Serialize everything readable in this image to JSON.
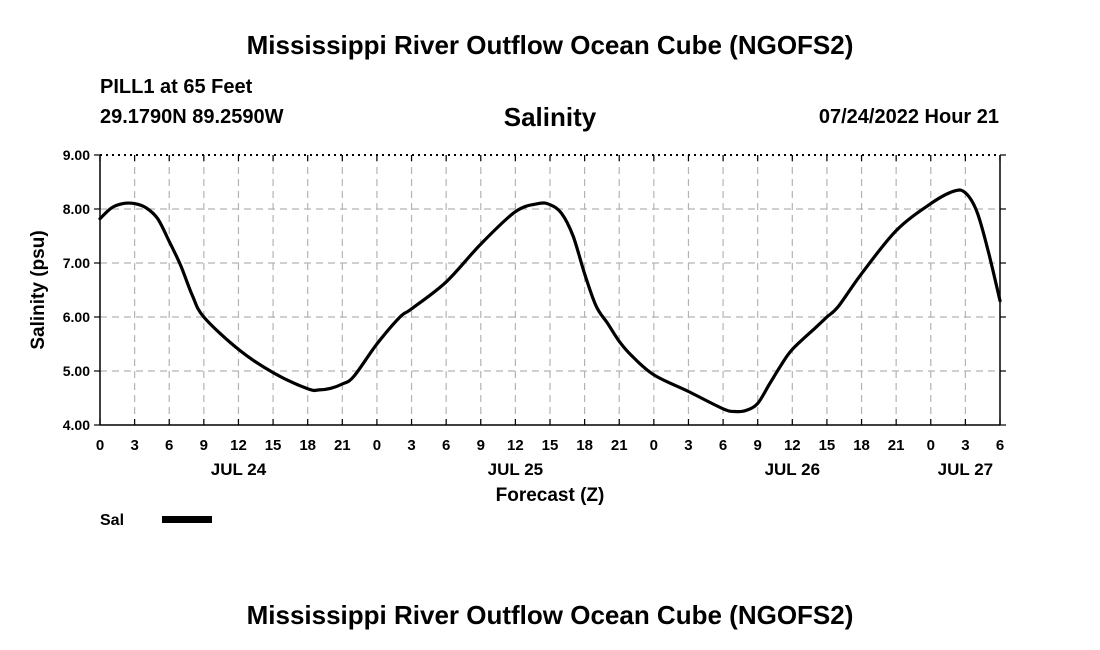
{
  "header": {
    "title": "Mississippi River Outflow Ocean Cube (NGOFS2)",
    "station": "PILL1 at 65 Feet",
    "coords": "29.1790N  89.2590W",
    "datetime": "07/24/2022 Hour 21"
  },
  "footer": {
    "title": "Mississippi River Outflow Ocean Cube (NGOFS2)"
  },
  "chart_data": {
    "type": "line",
    "title": "Salinity",
    "xlabel": "Forecast (Z)",
    "ylabel": "Salinity (psu)",
    "ylim": [
      4.0,
      9.0
    ],
    "yticks": [
      "4.00",
      "5.00",
      "6.00",
      "7.00",
      "8.00",
      "9.00"
    ],
    "xlim_hours": [
      0,
      78
    ],
    "xtick_labels": [
      "0",
      "3",
      "6",
      "9",
      "12",
      "15",
      "18",
      "21",
      "0",
      "3",
      "6",
      "9",
      "12",
      "15",
      "18",
      "21",
      "0",
      "3",
      "6",
      "9",
      "12",
      "15",
      "18",
      "21",
      "0",
      "3",
      "6"
    ],
    "day_labels": [
      {
        "label": "JUL 24",
        "hour": 12
      },
      {
        "label": "JUL 25",
        "hour": 36
      },
      {
        "label": "JUL 26",
        "hour": 60
      },
      {
        "label": "JUL 27",
        "hour": 75
      }
    ],
    "grid": true,
    "legend": {
      "label": "Sal",
      "placement": "bottom-left"
    },
    "series": [
      {
        "name": "Sal",
        "x": [
          0,
          1,
          2,
          3,
          4,
          5,
          6,
          7,
          8,
          9,
          12,
          15,
          18,
          19,
          20,
          21,
          22,
          24,
          26,
          27,
          30,
          33,
          36,
          38,
          39,
          40,
          41,
          42,
          43,
          44,
          45,
          46,
          48,
          51,
          54,
          55,
          56,
          57,
          58,
          59,
          60,
          62,
          63,
          64,
          66,
          69,
          72,
          74,
          75,
          76,
          77,
          78
        ],
        "values": [
          7.82,
          8.02,
          8.1,
          8.1,
          8.02,
          7.82,
          7.4,
          6.95,
          6.4,
          6.0,
          5.4,
          4.97,
          4.67,
          4.65,
          4.68,
          4.76,
          4.9,
          5.5,
          6.0,
          6.15,
          6.65,
          7.35,
          7.95,
          8.1,
          8.08,
          7.92,
          7.5,
          6.8,
          6.2,
          5.88,
          5.55,
          5.3,
          4.93,
          4.62,
          4.3,
          4.25,
          4.27,
          4.4,
          4.75,
          5.1,
          5.4,
          5.8,
          6.0,
          6.2,
          6.8,
          7.6,
          8.1,
          8.33,
          8.3,
          7.95,
          7.2,
          6.3
        ]
      }
    ]
  }
}
